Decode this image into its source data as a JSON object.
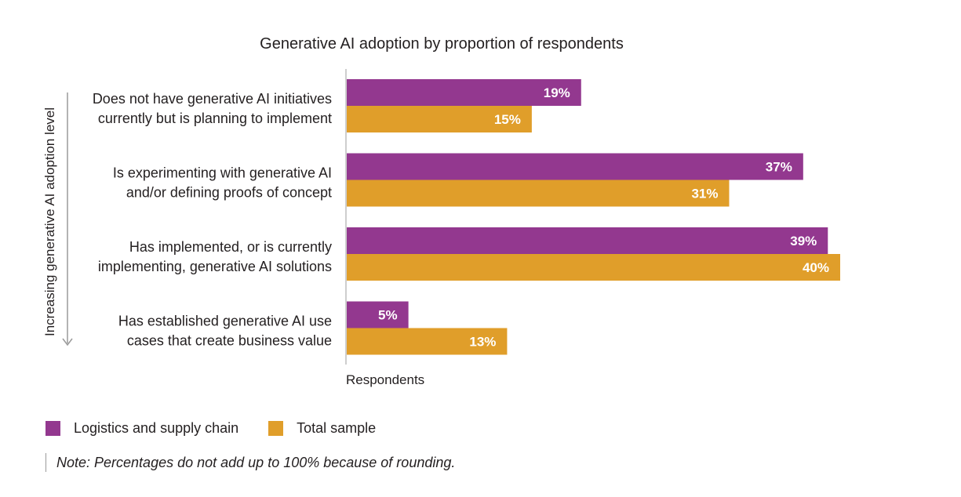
{
  "chart_data": {
    "type": "bar",
    "orientation": "horizontal",
    "title": "Generative AI adoption by proportion of respondents",
    "xlabel": "Respondents",
    "ylabel": "Increasing generative AI adoption level",
    "categories": [
      [
        "Does not have generative AI initiatives",
        "currently but is planning to implement"
      ],
      [
        "Is experimenting with generative AI",
        "and/or defining proofs of concept"
      ],
      [
        "Has implemented, or is currently",
        "implementing, generative AI solutions"
      ],
      [
        "Has established generative AI use",
        "cases that create business value"
      ]
    ],
    "series": [
      {
        "name": "Logistics and supply chain",
        "color": "#93388f",
        "values": [
          19,
          37,
          39,
          5
        ],
        "labels": [
          "19%",
          "37%",
          "39%",
          "5%"
        ]
      },
      {
        "name": "Total sample",
        "color": "#e09e2a",
        "values": [
          15,
          31,
          40,
          13
        ],
        "labels": [
          "15%",
          "31%",
          "40%",
          "13%"
        ]
      }
    ],
    "xlim": [
      0,
      40
    ],
    "grid": false,
    "legend": "bottom-left",
    "note": "Note: Percentages do not add up to 100% because of rounding."
  }
}
